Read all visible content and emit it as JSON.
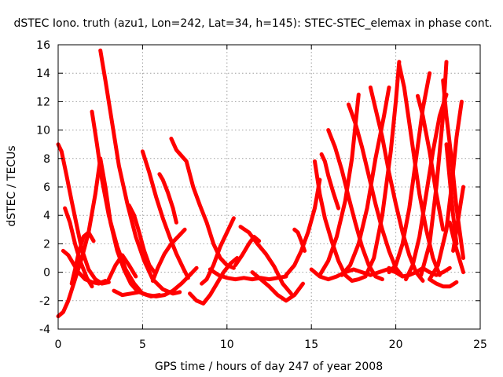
{
  "chart_data": {
    "type": "scatter",
    "title": "dSTEC Iono. truth (azu1, Lon=242, Lat=34, h=145): STEC-STEC_elemax in phase cont.",
    "xlabel": "GPS time / hours of day 247 of year 2008",
    "ylabel": "dSTEC  / TECUs",
    "xlim": [
      0,
      25
    ],
    "ylim": [
      -4,
      16
    ],
    "xticks": [
      0,
      5,
      10,
      15,
      20,
      25
    ],
    "yticks": [
      -4,
      -2,
      0,
      2,
      4,
      6,
      8,
      10,
      12,
      14,
      16
    ],
    "grid": true,
    "marker": "plus",
    "color": "#ff0000",
    "series": [
      {
        "x": [
          0.0,
          0.3,
          0.6,
          1.0,
          1.4,
          1.8,
          2.2,
          2.5,
          2.8,
          3.1,
          3.5,
          3.9,
          4.3,
          4.6
        ],
        "y": [
          -3.1,
          -2.8,
          -2.0,
          -0.5,
          1.0,
          2.8,
          5.5,
          8.0,
          6.0,
          3.5,
          1.5,
          0.2,
          -0.8,
          -1.2
        ]
      },
      {
        "x": [
          0.0,
          0.2,
          0.5,
          0.8,
          1.1,
          1.4,
          1.8,
          2.2,
          2.6,
          3.0
        ],
        "y": [
          9.0,
          8.5,
          6.8,
          5.0,
          3.3,
          1.6,
          0.2,
          -0.5,
          -0.8,
          -0.7
        ]
      },
      {
        "x": [
          0.3,
          0.6,
          0.9,
          1.2,
          1.6,
          2.0,
          2.4,
          2.8
        ],
        "y": [
          1.5,
          1.2,
          0.6,
          0.0,
          -0.5,
          -0.7,
          -0.8,
          -0.6
        ]
      },
      {
        "x": [
          0.4,
          0.7,
          1.0,
          1.3,
          1.7,
          2.0
        ],
        "y": [
          4.5,
          3.5,
          2.0,
          0.8,
          -0.4,
          -1.0
        ]
      },
      {
        "x": [
          0.8,
          1.0,
          1.2,
          1.5,
          1.8,
          2.1
        ],
        "y": [
          -0.8,
          0.2,
          1.3,
          2.5,
          2.8,
          2.2
        ]
      },
      {
        "x": [
          2.0,
          2.3,
          2.6,
          3.0,
          3.5,
          4.0,
          4.5,
          5.0,
          5.5,
          6.0
        ],
        "y": [
          11.3,
          9.0,
          6.5,
          4.0,
          1.8,
          0.2,
          -0.8,
          -1.5,
          -1.7,
          -1.6
        ]
      },
      {
        "x": [
          2.5,
          2.8,
          3.2,
          3.6,
          4.1,
          4.6,
          5.1,
          5.6,
          6.2,
          6.8,
          7.2
        ],
        "y": [
          15.6,
          13.5,
          10.5,
          7.5,
          4.8,
          2.5,
          0.8,
          -0.5,
          -1.2,
          -1.5,
          -1.4
        ]
      },
      {
        "x": [
          3.0,
          3.4,
          3.8,
          4.2,
          4.6
        ],
        "y": [
          -0.5,
          0.5,
          1.2,
          0.5,
          -0.3
        ]
      },
      {
        "x": [
          3.3,
          3.8,
          4.3,
          4.8,
          5.3,
          5.8,
          6.3,
          6.8,
          7.3,
          7.8,
          8.2
        ],
        "y": [
          -1.3,
          -1.6,
          -1.5,
          -1.4,
          -1.6,
          -1.7,
          -1.6,
          -1.3,
          -0.8,
          -0.2,
          0.3
        ]
      },
      {
        "x": [
          4.2,
          4.5,
          4.8,
          5.1,
          5.4,
          5.7
        ],
        "y": [
          4.7,
          4.0,
          2.8,
          1.5,
          0.5,
          0.0
        ]
      },
      {
        "x": [
          5.0,
          5.4,
          5.8,
          6.2,
          6.6,
          7.0,
          7.4,
          7.7
        ],
        "y": [
          8.5,
          7.0,
          5.3,
          3.8,
          2.5,
          1.3,
          0.3,
          -0.4
        ]
      },
      {
        "x": [
          6.0,
          6.2,
          6.5,
          6.8,
          7.0
        ],
        "y": [
          6.9,
          6.5,
          5.6,
          4.5,
          3.5
        ]
      },
      {
        "x": [
          6.7,
          7.0,
          7.3,
          7.6,
          8.0,
          8.4,
          8.8,
          9.2,
          9.6,
          10.0,
          10.4
        ],
        "y": [
          9.4,
          8.6,
          8.2,
          7.8,
          6.0,
          4.7,
          3.5,
          2.0,
          1.0,
          0.5,
          0.3
        ]
      },
      {
        "x": [
          5.6,
          5.9,
          6.3,
          6.7,
          7.1,
          7.5
        ],
        "y": [
          -0.6,
          0.3,
          1.3,
          2.0,
          2.5,
          3.0
        ]
      },
      {
        "x": [
          7.8,
          8.2,
          8.6,
          9.0,
          9.4,
          9.8,
          10.2,
          10.6
        ],
        "y": [
          -1.5,
          -2.0,
          -2.2,
          -1.6,
          -0.8,
          0.0,
          0.6,
          1.0
        ]
      },
      {
        "x": [
          8.5,
          8.8,
          9.2,
          9.6,
          10.0,
          10.4
        ],
        "y": [
          -0.8,
          -0.5,
          0.5,
          1.8,
          2.8,
          3.8
        ]
      },
      {
        "x": [
          9.0,
          9.5,
          10.0,
          10.5,
          11.0,
          11.5,
          12.0,
          12.5,
          13.0,
          13.5
        ],
        "y": [
          0.2,
          -0.2,
          -0.4,
          -0.5,
          -0.4,
          -0.5,
          -0.4,
          -0.5,
          -0.4,
          -0.3
        ]
      },
      {
        "x": [
          10.5,
          10.9,
          11.3,
          11.6,
          11.9
        ],
        "y": [
          0.5,
          1.2,
          2.0,
          2.5,
          2.2
        ]
      },
      {
        "x": [
          10.8,
          11.3,
          11.8,
          12.3,
          12.8,
          13.3,
          13.8
        ],
        "y": [
          3.2,
          2.8,
          2.0,
          1.3,
          0.4,
          -0.8,
          -1.5
        ]
      },
      {
        "x": [
          11.5,
          12.0,
          12.5,
          13.0,
          13.5,
          14.0,
          14.5
        ],
        "y": [
          0.0,
          -0.5,
          -1.0,
          -1.6,
          -2.0,
          -1.6,
          -0.8
        ]
      },
      {
        "x": [
          13.5,
          14.0,
          14.4,
          14.8,
          15.2,
          15.5
        ],
        "y": [
          -0.2,
          0.5,
          1.5,
          2.8,
          4.5,
          6.5
        ]
      },
      {
        "x": [
          14.0,
          14.2,
          14.4,
          14.6
        ],
        "y": [
          3.0,
          2.8,
          2.2,
          1.5
        ]
      },
      {
        "x": [
          15.0,
          15.5,
          16.0,
          16.5,
          17.0,
          17.5,
          18.0,
          18.5,
          19.0,
          19.5,
          20.0
        ],
        "y": [
          0.2,
          -0.3,
          -0.5,
          -0.3,
          0.0,
          0.2,
          0.0,
          -0.2,
          0.0,
          0.2,
          0.0
        ]
      },
      {
        "x": [
          15.2,
          15.5,
          15.8,
          16.2,
          16.6,
          17.0,
          17.4,
          17.8,
          18.2
        ],
        "y": [
          7.8,
          5.5,
          3.8,
          2.2,
          0.8,
          -0.2,
          -0.6,
          -0.5,
          -0.3
        ]
      },
      {
        "x": [
          15.6,
          15.8,
          16.0,
          16.3,
          16.6
        ],
        "y": [
          8.3,
          7.8,
          6.8,
          5.6,
          4.5
        ]
      },
      {
        "x": [
          15.5,
          16.0,
          16.5,
          17.0,
          17.4,
          17.8
        ],
        "y": [
          -0.2,
          0.8,
          2.5,
          5.0,
          8.0,
          12.5
        ]
      },
      {
        "x": [
          16.0,
          16.4,
          16.8,
          17.2,
          17.6,
          18.0,
          18.4,
          18.8,
          19.2
        ],
        "y": [
          10.0,
          8.8,
          7.2,
          5.3,
          3.5,
          1.8,
          0.5,
          -0.3,
          -0.5
        ]
      },
      {
        "x": [
          17.2,
          17.6,
          18.0,
          18.4,
          18.8,
          19.2,
          19.6,
          20.0,
          20.4
        ],
        "y": [
          11.8,
          10.5,
          8.8,
          6.8,
          4.8,
          3.0,
          1.5,
          0.3,
          -0.3
        ]
      },
      {
        "x": [
          16.8,
          17.3,
          17.8,
          18.3,
          18.8,
          19.3,
          19.6
        ],
        "y": [
          -0.2,
          0.5,
          2.0,
          4.5,
          8.0,
          11.0,
          13.0
        ]
      },
      {
        "x": [
          18.5,
          18.8,
          19.2,
          19.6,
          20.0,
          20.4,
          20.8,
          21.2,
          21.6
        ],
        "y": [
          13.0,
          11.5,
          9.5,
          7.0,
          4.8,
          2.8,
          1.2,
          0.0,
          -0.6
        ]
      },
      {
        "x": [
          18.2,
          18.7,
          19.2,
          19.7,
          20.0,
          20.2
        ],
        "y": [
          -0.3,
          1.0,
          4.0,
          8.5,
          12.0,
          14.8
        ]
      },
      {
        "x": [
          20.2,
          20.5,
          20.8,
          21.1,
          21.4,
          21.8,
          22.2,
          22.6
        ],
        "y": [
          14.6,
          13.0,
          10.5,
          8.0,
          5.5,
          3.0,
          1.0,
          -0.2
        ]
      },
      {
        "x": [
          19.6,
          20.0,
          20.4,
          20.8,
          21.2,
          21.6,
          22.0
        ],
        "y": [
          0.0,
          0.5,
          2.0,
          4.5,
          8.0,
          11.5,
          14.0
        ]
      },
      {
        "x": [
          20.6,
          21.0,
          21.4,
          21.8,
          22.2,
          22.6,
          23.0
        ],
        "y": [
          -0.5,
          0.5,
          2.5,
          5.5,
          8.5,
          11.0,
          12.5
        ]
      },
      {
        "x": [
          21.3,
          21.6,
          22.0,
          22.4,
          22.8
        ],
        "y": [
          12.4,
          11.0,
          8.5,
          5.5,
          3.0
        ]
      },
      {
        "x": [
          21.5,
          22.0,
          22.4,
          22.8,
          23.0
        ],
        "y": [
          -0.2,
          2.0,
          6.0,
          11.0,
          14.8
        ]
      },
      {
        "x": [
          22.8,
          23.0,
          23.3,
          23.6,
          24.0
        ],
        "y": [
          13.5,
          11.0,
          8.0,
          4.5,
          1.0
        ]
      },
      {
        "x": [
          22.0,
          22.5,
          23.0,
          23.3,
          23.6,
          23.9
        ],
        "y": [
          -0.5,
          0.5,
          3.0,
          6.0,
          9.5,
          12.0
        ]
      },
      {
        "x": [
          23.0,
          23.2,
          23.4,
          23.6
        ],
        "y": [
          9.0,
          6.5,
          4.0,
          2.0
        ]
      },
      {
        "x": [
          22.0,
          22.4,
          22.8,
          23.2,
          23.6
        ],
        "y": [
          -0.5,
          -0.8,
          -1.0,
          -1.0,
          -0.7
        ]
      },
      {
        "x": [
          23.4,
          23.6,
          23.8,
          24.0
        ],
        "y": [
          1.5,
          3.0,
          4.5,
          6.0
        ]
      },
      {
        "x": [
          23.2,
          23.5,
          23.8,
          24.0
        ],
        "y": [
          3.5,
          2.0,
          0.8,
          0.0
        ]
      },
      {
        "x": [
          19.6,
          20.0,
          20.4,
          20.8,
          21.2,
          21.6,
          22.0,
          22.4,
          22.8,
          23.2
        ],
        "y": [
          0.3,
          0.0,
          -0.3,
          -0.2,
          0.0,
          0.3,
          0.0,
          -0.2,
          0.0,
          0.3
        ]
      }
    ]
  }
}
